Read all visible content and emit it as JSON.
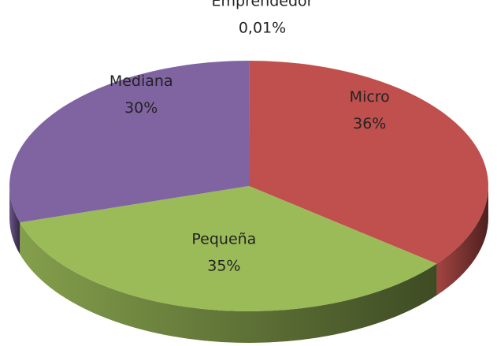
{
  "chart_data": {
    "type": "pie",
    "categories": [
      "Emprendedor",
      "Micro",
      "Pequeña",
      "Mediana"
    ],
    "values": [
      0.01,
      36,
      35,
      30
    ],
    "value_labels": [
      "0,01%",
      "36%",
      "35%",
      "30%"
    ],
    "colors": [
      "#4f81bd",
      "#c0504d",
      "#9bbb59",
      "#8064a2"
    ]
  }
}
